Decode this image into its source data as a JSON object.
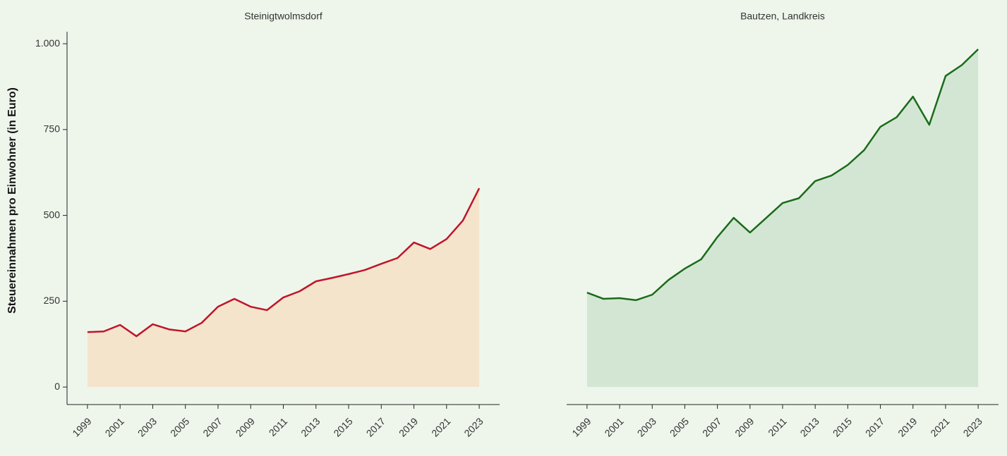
{
  "chart_data": [
    {
      "type": "area",
      "title": "Steinigtwolmsdorf",
      "ylabel": "Steuereinnahmen pro Einwohner (in Euro)",
      "x": [
        1999,
        2000,
        2001,
        2002,
        2003,
        2004,
        2005,
        2006,
        2007,
        2008,
        2009,
        2010,
        2011,
        2012,
        2013,
        2014,
        2015,
        2016,
        2017,
        2018,
        2019,
        2020,
        2021,
        2022,
        2023
      ],
      "values": [
        160,
        162,
        181,
        148,
        183,
        168,
        162,
        187,
        234,
        257,
        234,
        224,
        261,
        279,
        308,
        318,
        329,
        341,
        359,
        376,
        421,
        402,
        431,
        485,
        579
      ],
      "color": "#c0142a",
      "fill": "#f5e4cc",
      "xlim": [
        1997.75,
        2024.25
      ],
      "xticks": [
        1999,
        2001,
        2003,
        2005,
        2007,
        2009,
        2011,
        2013,
        2015,
        2017,
        2019,
        2021,
        2023
      ],
      "ylim": [
        -51,
        1035
      ],
      "yticks": [
        0,
        250,
        500,
        750,
        {
          "value": 1000,
          "label": "1.000"
        }
      ]
    },
    {
      "type": "area",
      "title": "Bautzen, Landkreis",
      "x": [
        1999,
        2000,
        2001,
        2002,
        2003,
        2004,
        2005,
        2006,
        2007,
        2008,
        2009,
        2010,
        2011,
        2012,
        2013,
        2014,
        2015,
        2016,
        2017,
        2018,
        2019,
        2020,
        2021,
        2022,
        2023
      ],
      "values": [
        275,
        257,
        259,
        253,
        269,
        312,
        345,
        372,
        437,
        493,
        450,
        493,
        536,
        550,
        600,
        616,
        647,
        690,
        758,
        786,
        846,
        764,
        906,
        938,
        984
      ],
      "color": "#1a6b1a",
      "fill": "#d3e6d3",
      "xlim": [
        1997.75,
        2024.25
      ],
      "xticks": [
        1999,
        2001,
        2003,
        2005,
        2007,
        2009,
        2011,
        2013,
        2015,
        2017,
        2019,
        2021,
        2023
      ],
      "ylim": [
        -51,
        1035
      ]
    }
  ]
}
